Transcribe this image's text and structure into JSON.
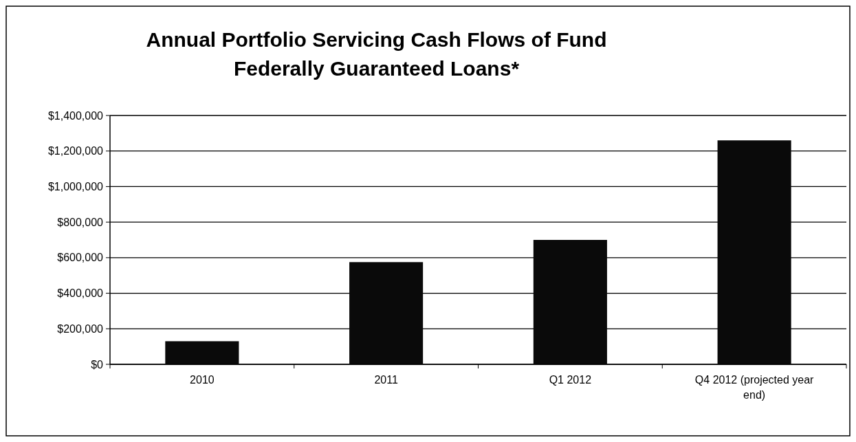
{
  "chart_data": {
    "type": "bar",
    "title": "Annual Portfolio Servicing Cash Flows of Fund\nFederally Guaranteed Loans*",
    "categories": [
      "2010",
      "2011",
      "Q1 2012",
      "Q4 2012 (projected year end)"
    ],
    "values": [
      130000,
      575000,
      700000,
      1260000
    ],
    "color": "#0a0a0a",
    "ylim": [
      0,
      1400000
    ],
    "yticks": [
      {
        "value": 0,
        "label": "$0"
      },
      {
        "value": 200000,
        "label": "$200,000"
      },
      {
        "value": 400000,
        "label": "$400,000"
      },
      {
        "value": 600000,
        "label": "$600,000"
      },
      {
        "value": 800000,
        "label": "$800,000"
      },
      {
        "value": 1000000,
        "label": "$1,000,000"
      },
      {
        "value": 1200000,
        "label": "$1,200,000"
      },
      {
        "value": 1400000,
        "label": "$1,400,000"
      }
    ],
    "grid": "y"
  }
}
